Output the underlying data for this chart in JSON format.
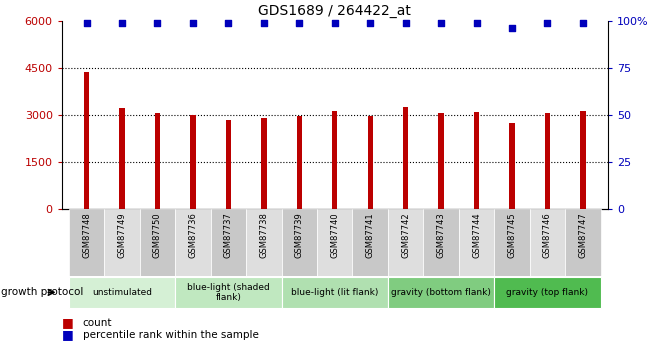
{
  "title": "GDS1689 / 264422_at",
  "samples": [
    "GSM87748",
    "GSM87749",
    "GSM87750",
    "GSM87736",
    "GSM87737",
    "GSM87738",
    "GSM87739",
    "GSM87740",
    "GSM87741",
    "GSM87742",
    "GSM87743",
    "GSM87744",
    "GSM87745",
    "GSM87746",
    "GSM87747"
  ],
  "counts": [
    4350,
    3220,
    3060,
    2980,
    2820,
    2900,
    2960,
    3120,
    2950,
    3250,
    3060,
    3080,
    2720,
    3070,
    3130
  ],
  "percentile": [
    99,
    99,
    99,
    99,
    99,
    99,
    99,
    99,
    99,
    99,
    99,
    99,
    96,
    99,
    99
  ],
  "bar_color": "#bb0000",
  "dot_color": "#0000bb",
  "ylim_left": [
    0,
    6000
  ],
  "ylim_right": [
    0,
    100
  ],
  "yticks_left": [
    0,
    1500,
    3000,
    4500,
    6000
  ],
  "yticks_right": [
    0,
    25,
    50,
    75,
    100
  ],
  "groups": [
    {
      "label": "unstimulated",
      "start": 0,
      "end": 3,
      "color": "#d5f0d5"
    },
    {
      "label": "blue-light (shaded\nflank)",
      "start": 3,
      "end": 6,
      "color": "#c0e8c0"
    },
    {
      "label": "blue-light (lit flank)",
      "start": 6,
      "end": 9,
      "color": "#b0e0b0"
    },
    {
      "label": "gravity (bottom flank)",
      "start": 9,
      "end": 12,
      "color": "#80cc80"
    },
    {
      "label": "gravity (top flank)",
      "start": 12,
      "end": 15,
      "color": "#50bb50"
    }
  ],
  "legend_count_color": "#bb0000",
  "legend_dot_color": "#0000bb",
  "growth_protocol_label": "growth protocol",
  "xlabel_count": "count",
  "xlabel_percentile": "percentile rank within the sample",
  "bar_width": 0.15
}
